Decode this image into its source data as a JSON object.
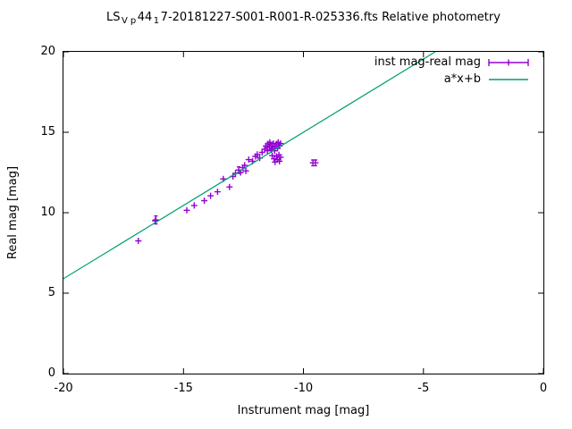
{
  "title": {
    "s1": "LS",
    "sub1": "V",
    "sub2": "p",
    "s2": "44",
    "sub3": "1",
    "s3": "7-20181227-S001-R001-R-025336.fts Relative photometry"
  },
  "colors": {
    "points": "#9400d3",
    "fit_line": "#009e73",
    "axis": "#000000",
    "background": "#ffffff"
  },
  "chart_data": {
    "type": "scatter",
    "title_plain": "LS_V_p44_17-20181227-S001-R001-R-025336.fts Relative photometry",
    "xlabel": "Instrument mag [mag]",
    "ylabel": "Real mag [mag]",
    "xlim": [
      -20,
      0
    ],
    "ylim": [
      0,
      20
    ],
    "x_ticks": [
      -20,
      -15,
      -10,
      -5,
      0
    ],
    "y_ticks": [
      0,
      5,
      10,
      15,
      20
    ],
    "grid": false,
    "legend_position": "top-right-inside",
    "series": [
      {
        "name": "inst mag-real mag",
        "type": "points-errorbars",
        "marker": "plus",
        "color": "#9400d3",
        "points": [
          [
            -16.88,
            8.25
          ],
          [
            -16.15,
            9.55,
            0.25
          ],
          [
            -16.18,
            9.5
          ],
          [
            -14.86,
            10.15
          ],
          [
            -14.55,
            10.45
          ],
          [
            -14.13,
            10.75
          ],
          [
            -13.87,
            11.05
          ],
          [
            -13.58,
            11.3
          ],
          [
            -13.34,
            12.1
          ],
          [
            -13.08,
            11.6
          ],
          [
            -12.94,
            12.25
          ],
          [
            -12.83,
            12.45
          ],
          [
            -12.7,
            12.65,
            0.2
          ],
          [
            -12.62,
            12.5
          ],
          [
            -12.53,
            12.8
          ],
          [
            -12.45,
            12.95
          ],
          [
            -12.4,
            12.6
          ],
          [
            -12.28,
            13.3
          ],
          [
            -12.12,
            13.2
          ],
          [
            -12.0,
            13.5
          ],
          [
            -11.92,
            13.62
          ],
          [
            -11.82,
            13.4
          ],
          [
            -11.72,
            13.75
          ],
          [
            -11.62,
            13.95
          ],
          [
            -11.56,
            14.15
          ],
          [
            -11.5,
            13.85
          ],
          [
            -11.48,
            14.28
          ],
          [
            -11.42,
            14.05,
            0.2
          ],
          [
            -11.4,
            14.38
          ],
          [
            -11.35,
            13.9
          ],
          [
            -11.32,
            14.15
          ],
          [
            -11.28,
            14.0
          ],
          [
            -11.25,
            14.3
          ],
          [
            -11.2,
            13.85
          ],
          [
            -11.18,
            14.1
          ],
          [
            -11.12,
            14.28
          ],
          [
            -11.08,
            14.0
          ],
          [
            -11.05,
            14.38
          ],
          [
            -11.0,
            14.15
          ],
          [
            -10.95,
            14.3
          ],
          [
            -11.3,
            13.55
          ],
          [
            -11.22,
            13.35
          ],
          [
            -11.18,
            13.15
          ],
          [
            -11.12,
            13.5
          ],
          [
            -11.08,
            13.3
          ],
          [
            -11.02,
            13.6
          ],
          [
            -11.0,
            13.2
          ],
          [
            -10.95,
            13.45
          ],
          [
            -9.6,
            13.1,
            0.18
          ],
          [
            -9.5,
            13.1,
            0.18
          ]
        ]
      },
      {
        "name": "a*x+b",
        "type": "line",
        "color": "#009e73",
        "a": 0.91,
        "b": 24.1,
        "endpoints": [
          [
            -20,
            5.9
          ],
          [
            -4.51,
            20
          ]
        ]
      }
    ]
  }
}
